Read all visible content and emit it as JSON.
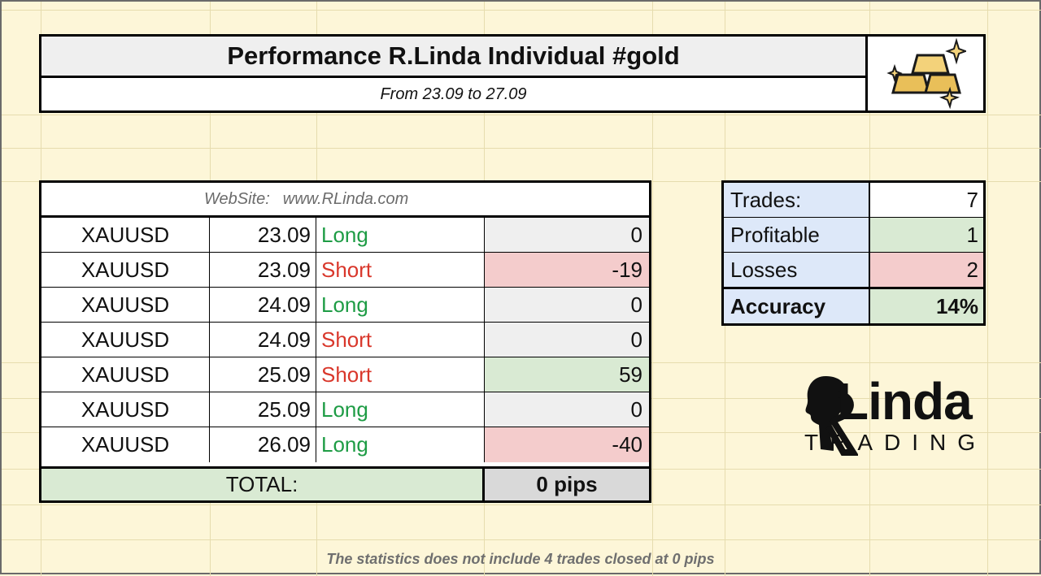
{
  "header": {
    "title": "Performance R.Linda Individual #gold",
    "subtitle": "From 23.09 to 27.09",
    "logo_icon": "gold-bars-icon"
  },
  "website": {
    "label": "WebSite:",
    "url": "www.RLinda.com"
  },
  "trades": [
    {
      "symbol": "XAUUSD",
      "date": "23.09",
      "direction": "Long",
      "result": "0",
      "tone": "neutral"
    },
    {
      "symbol": "XAUUSD",
      "date": "23.09",
      "direction": "Short",
      "result": "-19",
      "tone": "neg"
    },
    {
      "symbol": "XAUUSD",
      "date": "24.09",
      "direction": "Long",
      "result": "0",
      "tone": "neutral"
    },
    {
      "symbol": "XAUUSD",
      "date": "24.09",
      "direction": "Short",
      "result": "0",
      "tone": "neutral"
    },
    {
      "symbol": "XAUUSD",
      "date": "25.09",
      "direction": "Short",
      "result": "59",
      "tone": "pos"
    },
    {
      "symbol": "XAUUSD",
      "date": "25.09",
      "direction": "Long",
      "result": "0",
      "tone": "neutral"
    },
    {
      "symbol": "XAUUSD",
      "date": "26.09",
      "direction": "Long",
      "result": "-40",
      "tone": "neg"
    }
  ],
  "total": {
    "label": "TOTAL:",
    "value": "0 pips"
  },
  "stats": {
    "trades_label": "Trades:",
    "trades_value": "7",
    "profitable_label": "Profitable",
    "profitable_value": "1",
    "losses_label": "Losses",
    "losses_value": "2",
    "accuracy_label": "Accuracy",
    "accuracy_value": "14%"
  },
  "brand": {
    "main": "Linda",
    "sub": "TRADING"
  },
  "footnote": "The statistics does not include 4 trades closed at 0 pips",
  "colors": {
    "long": "#1e9c45",
    "short": "#d9372b",
    "positive_bg": "#d9ead3",
    "negative_bg": "#f4cccc",
    "neutral_bg": "#efefef",
    "label_bg": "#dde8f9"
  }
}
